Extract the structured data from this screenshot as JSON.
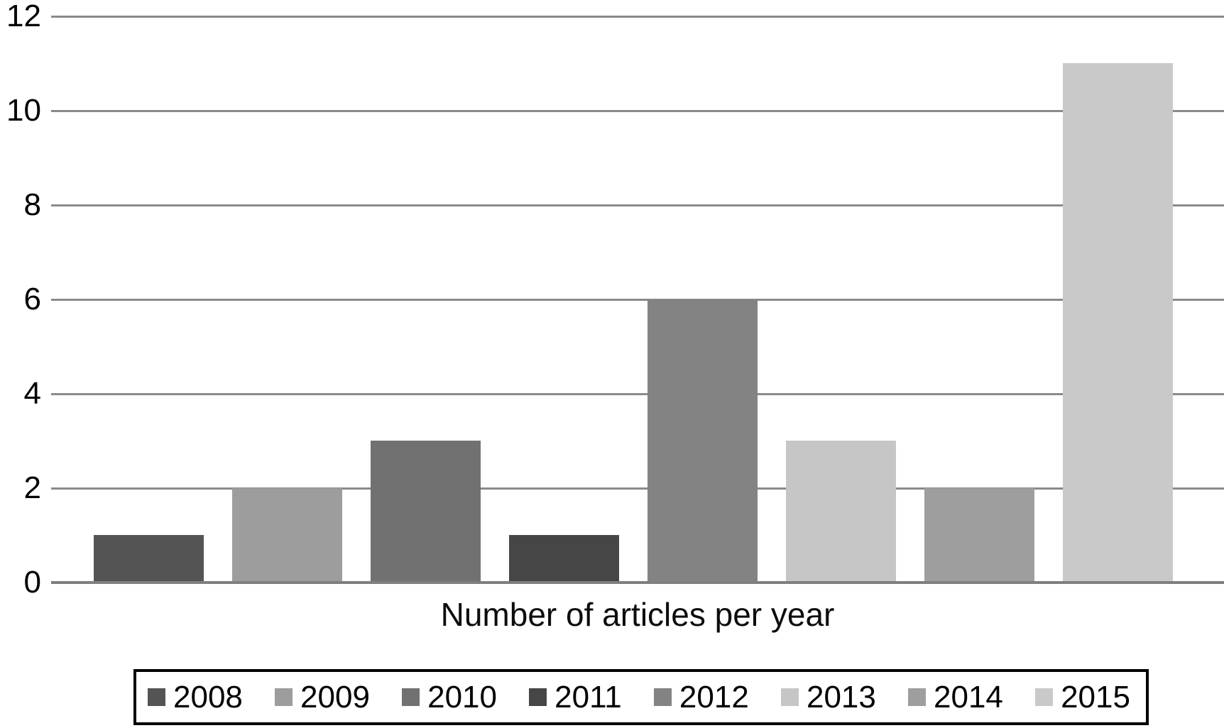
{
  "chart_data": {
    "type": "bar",
    "title": "",
    "xlabel": "Number of articles per year",
    "ylabel": "",
    "ylim": [
      0,
      12
    ],
    "yticks": [
      0,
      2,
      4,
      6,
      8,
      10,
      12
    ],
    "grid": "horizontal",
    "legend_position": "bottom-boxed",
    "categories": [
      "2008",
      "2009",
      "2010",
      "2011",
      "2012",
      "2013",
      "2014",
      "2015"
    ],
    "values": [
      1,
      2,
      3,
      1,
      6,
      3,
      2,
      11
    ],
    "series_colors": [
      "#545454",
      "#9d9d9d",
      "#717171",
      "#464646",
      "#838383",
      "#c6c6c6",
      "#9e9e9e",
      "#c9c9c9"
    ]
  },
  "colors": {
    "background": "#ffffff",
    "gridline": "#8a8a8a",
    "axis_line": "#7f7f7f",
    "text": "#000000",
    "legend_border": "#000000"
  }
}
